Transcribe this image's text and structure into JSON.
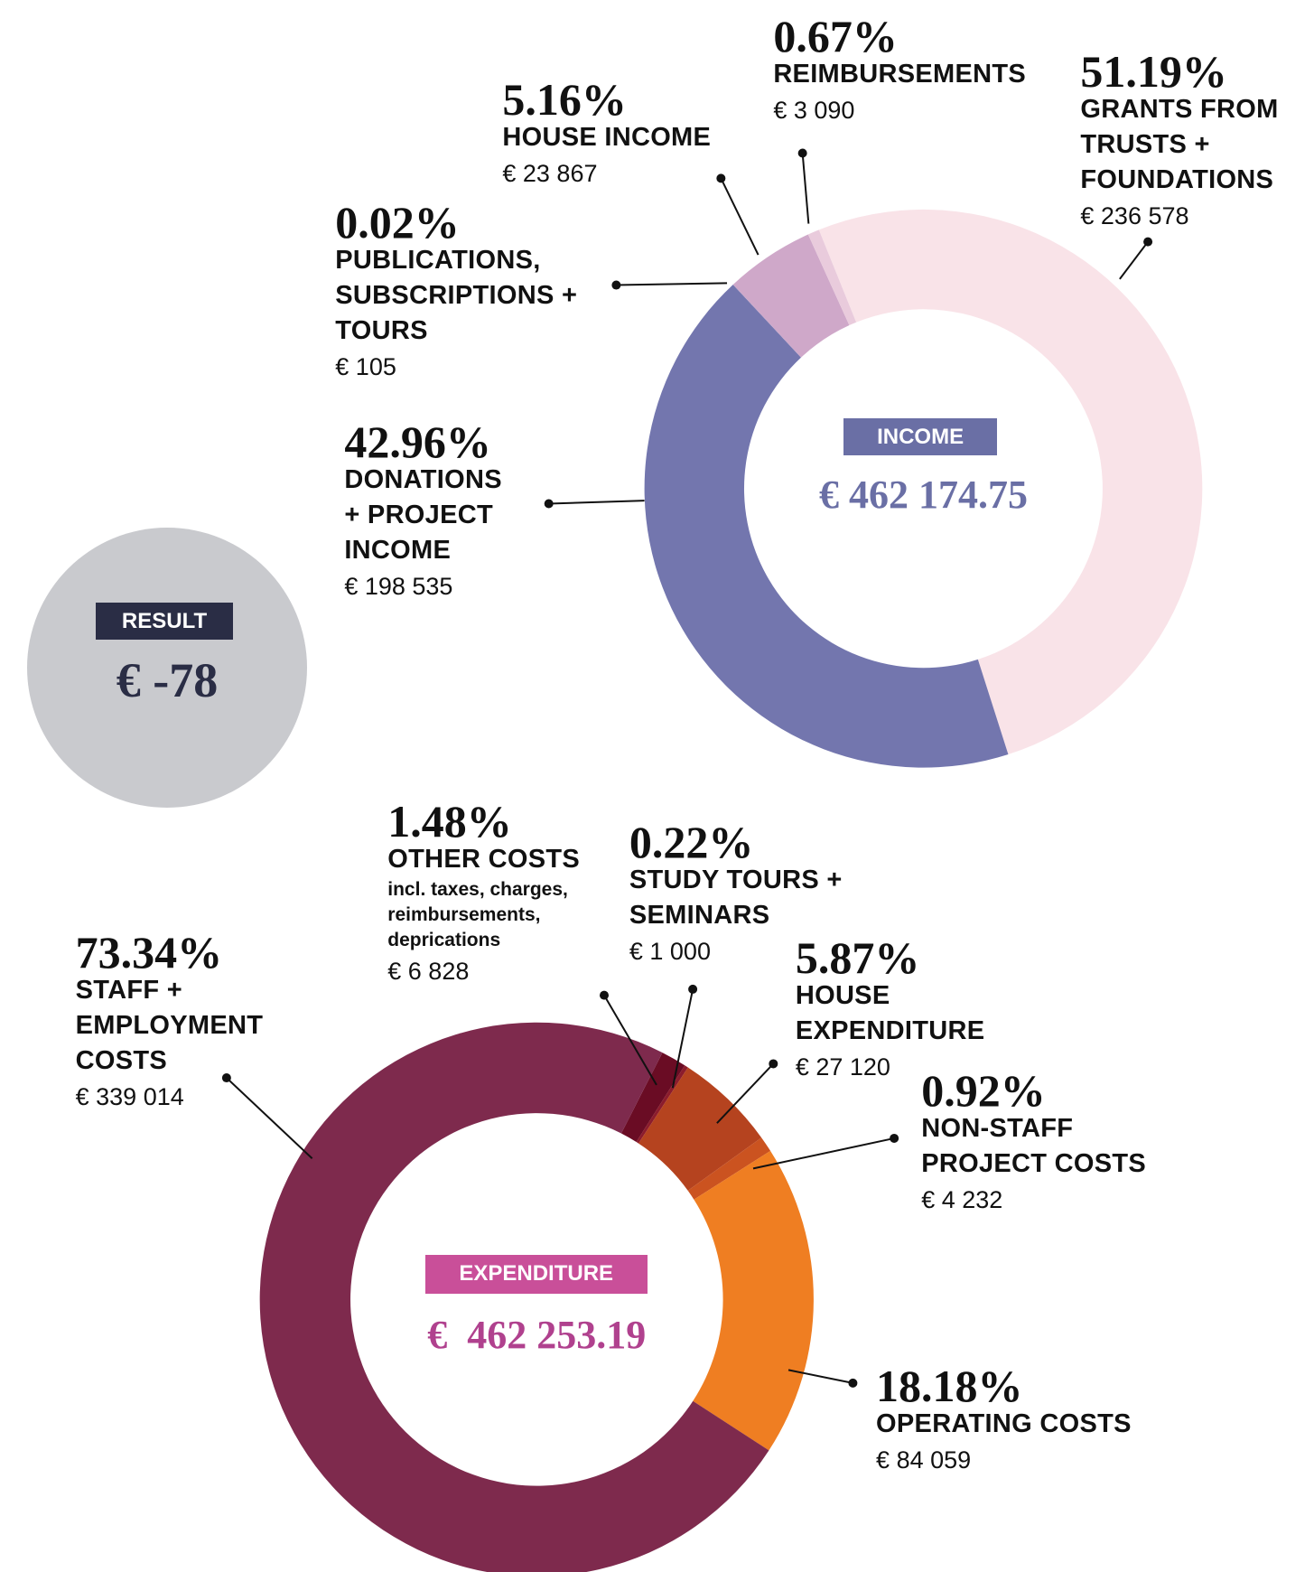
{
  "chart_data": [
    {
      "type": "donut",
      "center_title": "INCOME",
      "total_label": "€ 462 174.75",
      "categories": [
        "GRANTS FROM\nTRUSTS +\nFOUNDATIONS",
        "DONATIONS\n+ PROJECT\nINCOME",
        "PUBLICATIONS,\nSUBSCRIPTIONS +\nTOURS",
        "HOUSE INCOME",
        "REIMBURSEMENTS"
      ],
      "values": [
        51.19,
        42.96,
        0.02,
        5.16,
        0.67
      ],
      "value_labels": [
        "51.19%",
        "42.96%",
        "0.02%",
        "5.16%",
        "0.67%"
      ],
      "amounts": [
        236578,
        198535,
        105,
        23867,
        3090
      ],
      "amount_labels": [
        "€ 236 578",
        "€ 198 535",
        "€ 105",
        "€ 23 867",
        "€ 3 090"
      ],
      "colors": [
        "#f9e3e8",
        "#7376ae",
        "#9b86b8",
        "#cfa8c9",
        "#e9cbdc"
      ]
    },
    {
      "type": "donut",
      "center_title": "EXPENDITURE",
      "total_label": "€  462 253.19",
      "categories": [
        "OTHER COSTS",
        "STUDY TOURS +\nSEMINARS",
        "HOUSE\nEXPENDITURE",
        "NON-STAFF\nPROJECT COSTS",
        "OPERATING COSTS",
        "STAFF +\nEMPLOYMENT\nCOSTS"
      ],
      "annotation": "incl. taxes, charges,\nreimbursements,\ndeprications",
      "values": [
        1.48,
        0.22,
        5.87,
        0.92,
        18.18,
        73.34
      ],
      "value_labels": [
        "1.48%",
        "0.22%",
        "5.87%",
        "0.92%",
        "18.18%",
        "73.34%"
      ],
      "amounts": [
        6828,
        1000,
        27120,
        4232,
        84059,
        339014
      ],
      "amount_labels": [
        "€ 6 828",
        "€ 1 000",
        "€ 27 120",
        "€ 4 232",
        "€ 84 059",
        "€ 339 014"
      ],
      "colors": [
        "#6a0c24",
        "#8c1c2c",
        "#b5431f",
        "#cb5320",
        "#ef7e22",
        "#7e2a4d"
      ]
    }
  ],
  "result": {
    "title": "RESULT",
    "label": "€ -78"
  }
}
